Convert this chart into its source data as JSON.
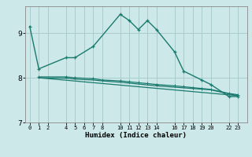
{
  "title": "",
  "xlabel": "Humidex (Indice chaleur)",
  "background_color": "#cce8e8",
  "grid_color": "#aacccc",
  "line_color": "#1a7a6e",
  "xlim": [
    -0.5,
    24
  ],
  "ylim": [
    7.0,
    9.6
  ],
  "yticks": [
    7,
    8,
    9
  ],
  "xticks": [
    0,
    1,
    2,
    4,
    5,
    6,
    7,
    8,
    10,
    11,
    12,
    13,
    14,
    16,
    17,
    18,
    19,
    20,
    22,
    23
  ],
  "line1_x": [
    0,
    1,
    4,
    5,
    7,
    10,
    11,
    12,
    13,
    14,
    16,
    17,
    19,
    20,
    22,
    23
  ],
  "line1_y": [
    9.15,
    8.2,
    8.45,
    8.45,
    8.7,
    9.42,
    9.28,
    9.08,
    9.28,
    9.08,
    8.58,
    8.15,
    7.95,
    7.85,
    7.58,
    7.58
  ],
  "line2_x": [
    1,
    4,
    5,
    7,
    8,
    10,
    11,
    12,
    13,
    14,
    16,
    17,
    18,
    19,
    20,
    22,
    23
  ],
  "line2_y": [
    8.02,
    8.02,
    8.0,
    7.98,
    7.95,
    7.93,
    7.91,
    7.89,
    7.87,
    7.85,
    7.82,
    7.8,
    7.78,
    7.76,
    7.74,
    7.65,
    7.62
  ],
  "line3_x": [
    1,
    23
  ],
  "line3_y": [
    8.0,
    7.6
  ],
  "line4_x": [
    1,
    4,
    5,
    7,
    8,
    10,
    14,
    20,
    22,
    23
  ],
  "line4_y": [
    8.0,
    7.99,
    7.97,
    7.95,
    7.93,
    7.9,
    7.82,
    7.73,
    7.64,
    7.6
  ]
}
